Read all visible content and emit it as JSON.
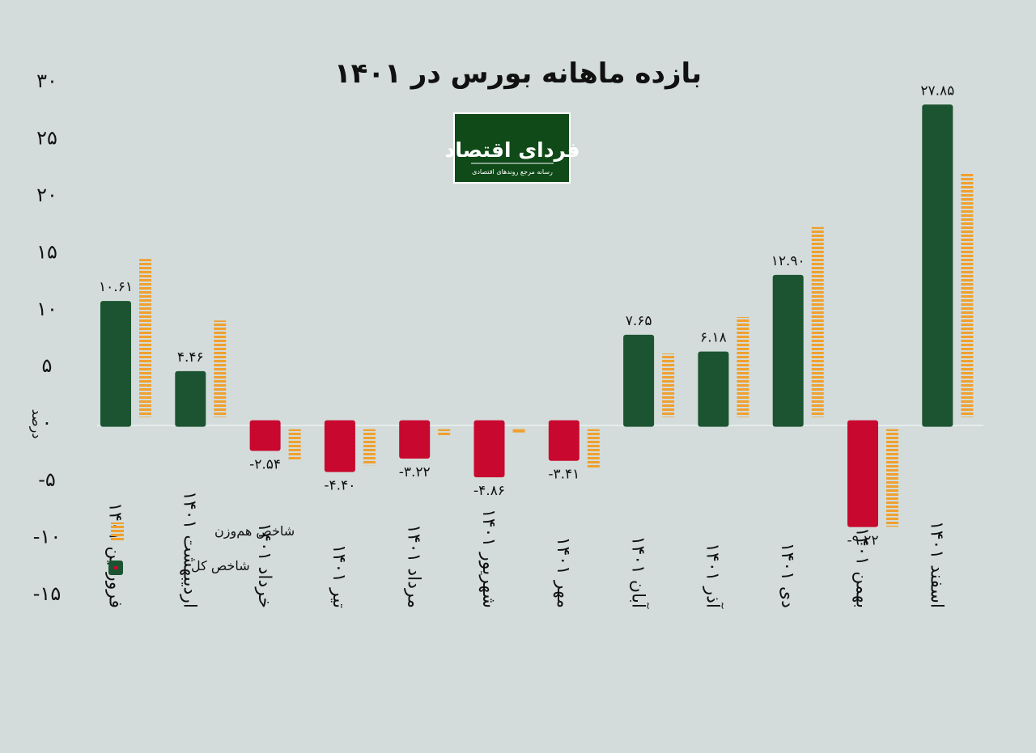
{
  "chart_data": {
    "type": "bar",
    "title": "بازده ماهانه بورس در ۱۴۰۱",
    "ylabel": "درصد",
    "ylim": [
      -15,
      30
    ],
    "yticks": [
      "۳۰",
      "۲۵",
      "۲۰",
      "۱۵",
      "۱۰",
      "۵",
      "۰",
      "-۵",
      "-۱۰",
      "-۱۵"
    ],
    "ytick_values": [
      30,
      25,
      20,
      15,
      10,
      5,
      0,
      -5,
      -10,
      -15
    ],
    "categories": [
      "فروردین ۱۴۰۱",
      "اردیبهشت ۱۴۰۱",
      "خرداد ۱۴۰۱",
      "تیر ۱۴۰۱",
      "مرداد ۱۴۰۱",
      "شهریور ۱۴۰۱",
      "مهر ۱۴۰۱",
      "آبان ۱۴۰۱",
      "آذر ۱۴۰۱",
      "دی ۱۴۰۱",
      "بهمن ۱۴۰۱",
      "اسفند ۱۴۰۱"
    ],
    "series": [
      {
        "name": "شاخص کل",
        "values": [
          10.61,
          4.46,
          -2.54,
          -4.4,
          -3.22,
          -4.86,
          -3.41,
          7.65,
          6.18,
          12.9,
          -9.22,
          27.85
        ],
        "labels": [
          "۱۰.۶۱",
          "۴.۴۶",
          "-۲.۵۴",
          "-۴.۴۰",
          "-۳.۲۲",
          "-۴.۸۶",
          "-۳.۴۱",
          "۷.۶۵",
          "۶.۱۸",
          "۱۲.۹۰",
          "-۹.۲۲",
          "۲۷.۸۵"
        ]
      },
      {
        "name": "شاخص هم‌وزن",
        "values": [
          14.3,
          8.9,
          -3.4,
          -3.8,
          -1.2,
          0,
          -4.0,
          6.0,
          9.2,
          17.1,
          -9.2,
          21.8
        ]
      }
    ],
    "colors": {
      "positive": "#1c5431",
      "negative": "#c8082e",
      "equal_weight": "#f0a02f"
    },
    "legend_position": "left"
  },
  "logo": {
    "text": "فردای اقتصاد",
    "subtext": "رسانه مرجع روندهای اقتصادی"
  }
}
